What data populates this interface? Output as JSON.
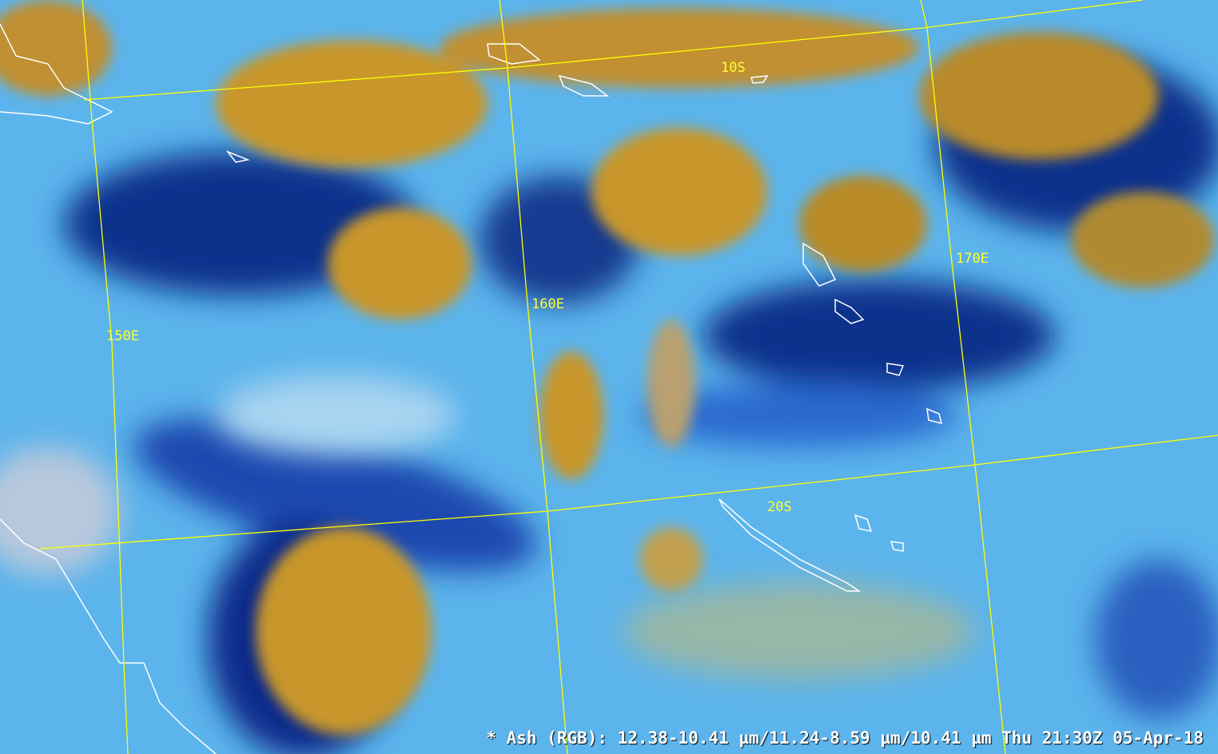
{
  "grid_labels": {
    "lat_10s": "10S",
    "lat_20s": "20S",
    "lon_150e": "150E",
    "lon_160e": "160E",
    "lon_170e": "170E"
  },
  "caption": "* Ash (RGB): 12.38-10.41 µm/11.24-8.59 µm/10.41 µm Thu 21:30Z 05-Apr-18",
  "colors": {
    "grid": "#ffff00",
    "coastline": "#ffffff",
    "ash_cloud": "#c8962c",
    "clear_sky": "#5cb4ec",
    "dark_cloud": "#10308c"
  }
}
